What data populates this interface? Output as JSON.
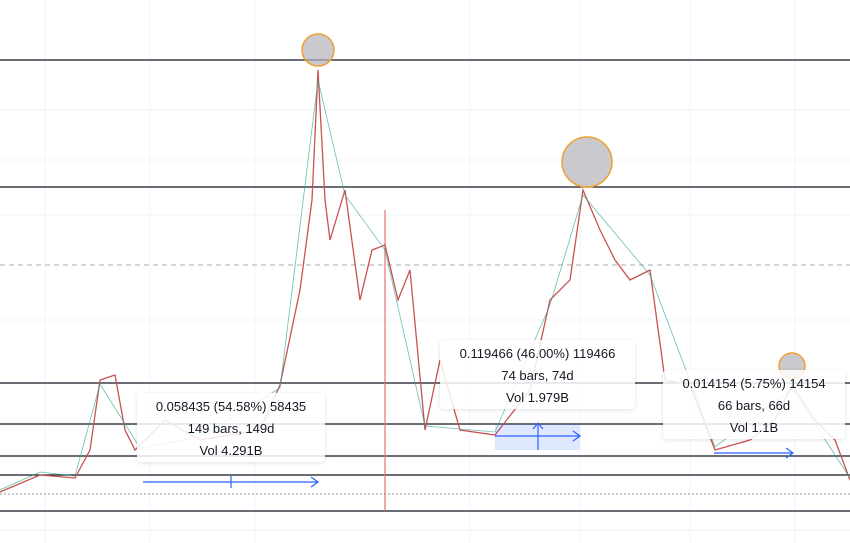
{
  "measurements": [
    {
      "change": "0.058435 (54.58%) 58435",
      "bars": "149 bars, 149d",
      "volume": "Vol 4.291B"
    },
    {
      "change": "0.119466 (46.00%) 119466",
      "bars": "74 bars, 74d",
      "volume": "Vol 1.979B"
    },
    {
      "change": "0.014154 (5.75%) 14154",
      "bars": "66 bars, 66d",
      "volume": "Vol 1.1B"
    }
  ]
}
